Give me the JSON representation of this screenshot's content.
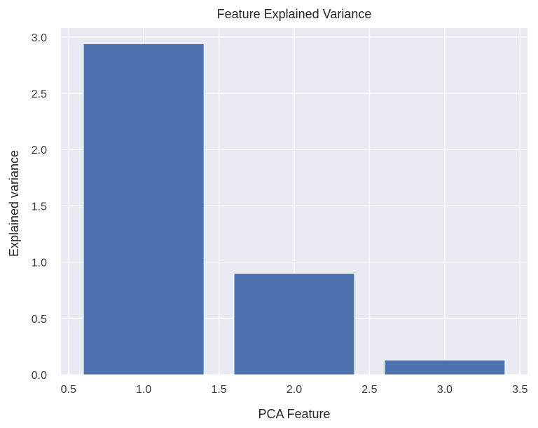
{
  "chart_data": {
    "type": "bar",
    "title": "Feature Explained Variance",
    "xlabel": "PCA Feature",
    "ylabel": "Explained variance",
    "x": [
      1,
      2,
      3
    ],
    "categories": [
      "1",
      "2",
      "3"
    ],
    "values": [
      2.94,
      0.9,
      0.13
    ],
    "bar_width": 0.8,
    "xlim": [
      0.45,
      3.55
    ],
    "ylim": [
      0,
      3.08
    ],
    "xticks": [
      0.5,
      1.0,
      1.5,
      2.0,
      2.5,
      3.0,
      3.5
    ],
    "xtick_labels": [
      "0.5",
      "1.0",
      "1.5",
      "2.0",
      "2.5",
      "3.0",
      "3.5"
    ],
    "yticks": [
      0.0,
      0.5,
      1.0,
      1.5,
      2.0,
      2.5,
      3.0
    ],
    "ytick_labels": [
      "0.0",
      "0.5",
      "1.0",
      "1.5",
      "2.0",
      "2.5",
      "3.0"
    ],
    "grid": true,
    "legend": null,
    "colors": {
      "bar": "#4c72b0",
      "plot_bg": "#eaeaf2",
      "grid": "#ffffff"
    }
  }
}
